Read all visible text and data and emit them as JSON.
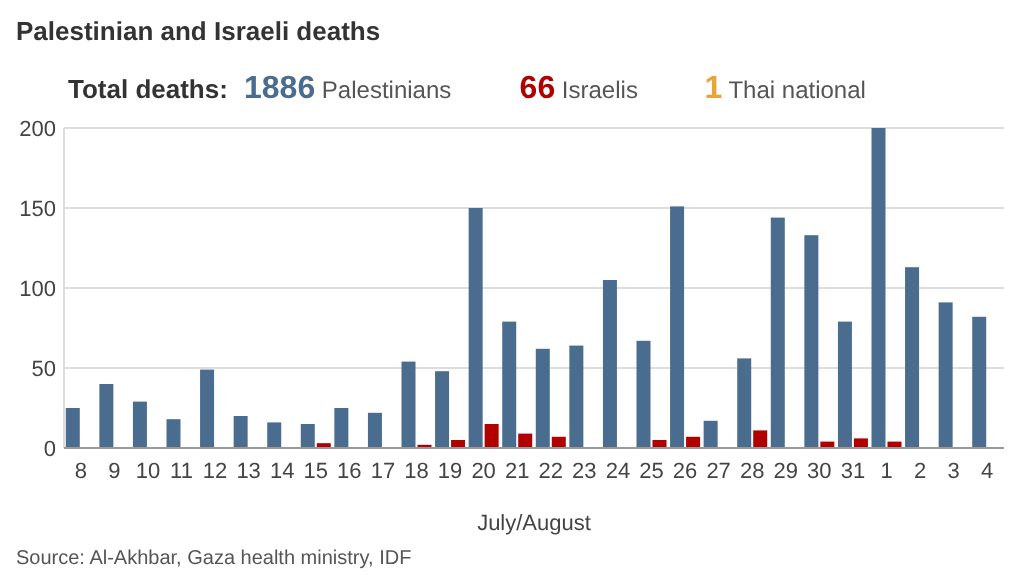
{
  "chart_data": {
    "type": "bar",
    "title": "Palestinian and Israeli deaths",
    "legend_title": "Total deaths:",
    "xlabel": "July/August",
    "categories": [
      "8",
      "9",
      "10",
      "11",
      "12",
      "13",
      "14",
      "15",
      "16",
      "17",
      "18",
      "19",
      "20",
      "21",
      "22",
      "23",
      "24",
      "25",
      "26",
      "27",
      "28",
      "29",
      "30",
      "31",
      "1",
      "2",
      "3",
      "4"
    ],
    "series": [
      {
        "name": "1886 Palestinians",
        "color": "#4a6d8f",
        "values": [
          25,
          40,
          29,
          18,
          49,
          20,
          16,
          15,
          25,
          22,
          54,
          48,
          150,
          79,
          62,
          64,
          105,
          67,
          151,
          17,
          56,
          144,
          133,
          79,
          200,
          113,
          91,
          82
        ]
      },
      {
        "name": "66 Israelis",
        "color": "#b00000",
        "values": [
          0,
          0,
          0,
          0,
          0,
          0,
          0,
          3,
          0,
          0,
          2,
          5,
          15,
          9,
          7,
          0,
          0,
          5,
          7,
          0,
          11,
          0,
          4,
          6,
          4,
          0,
          0,
          0
        ]
      },
      {
        "name": "1 Thai national",
        "color": "#e8a33a",
        "values": [
          null,
          null,
          null,
          null,
          null,
          null,
          null,
          null,
          null,
          null,
          null,
          null,
          null,
          null,
          null,
          null,
          null,
          null,
          null,
          null,
          null,
          null,
          null,
          null,
          null,
          null,
          null,
          null
        ]
      }
    ],
    "ylim": [
      0,
      200
    ],
    "yticks": [
      0,
      50,
      100,
      150,
      200
    ],
    "grid": "y",
    "legend": "top left",
    "annotations": [
      "Source: Al-Akhbar, Gaza health ministry, IDF"
    ]
  }
}
